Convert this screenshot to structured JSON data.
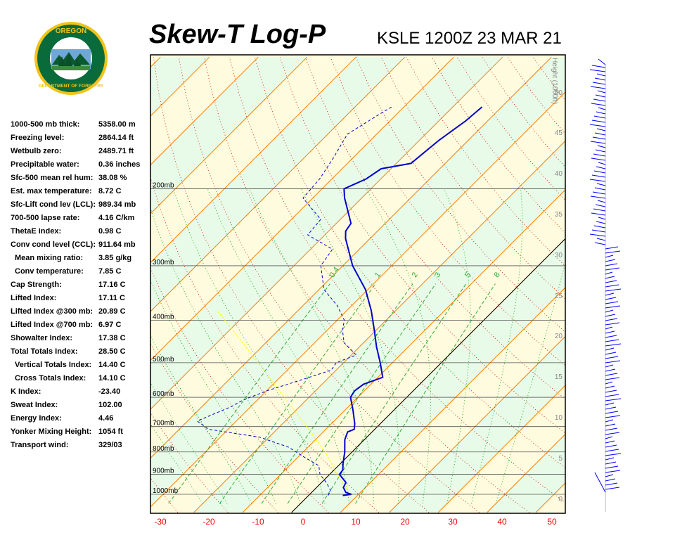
{
  "header": {
    "title": "Skew-T Log-P",
    "station_time": "KSLE 1200Z 23 MAR 21"
  },
  "logo": {
    "text_top": "OREGON",
    "text_bottom": "DEPARTMENT OF FORESTRY",
    "ring_color": "#0a6b3a",
    "gold_color": "#f2c318"
  },
  "indices": [
    {
      "label": "1000-500 mb thick:",
      "value": "5358.00 m",
      "indent": false
    },
    {
      "label": "Freezing level:",
      "value": "2864.14 ft",
      "indent": false
    },
    {
      "label": "Wetbulb zero:",
      "value": "2489.71 ft",
      "indent": false
    },
    {
      "label": "Precipitable water:",
      "value": "0.36 inches",
      "indent": false
    },
    {
      "label": "Sfc-500 mean rel hum:",
      "value": "38.08 %",
      "indent": false
    },
    {
      "label": "Est. max temperature:",
      "value": "8.72 C",
      "indent": false
    },
    {
      "label": "Sfc-Lift cond lev (LCL):",
      "value": "989.34 mb",
      "indent": false
    },
    {
      "label": "700-500 lapse rate:",
      "value": "4.16 C/km",
      "indent": false
    },
    {
      "label": "ThetaE index:",
      "value": "0.98 C",
      "indent": false
    },
    {
      "label": "Conv cond level (CCL):",
      "value": "911.64 mb",
      "indent": false
    },
    {
      "label": "Mean mixing ratio:",
      "value": "3.85 g/kg",
      "indent": true
    },
    {
      "label": "Conv temperature:",
      "value": "7.85 C",
      "indent": true
    },
    {
      "label": "Cap Strength:",
      "value": "17.16 C",
      "indent": false
    },
    {
      "label": "Lifted Index:",
      "value": "17.11 C",
      "indent": false
    },
    {
      "label": "Lifted Index @300 mb:",
      "value": "20.89 C",
      "indent": false
    },
    {
      "label": "Lifted Index @700 mb:",
      "value": "6.97 C",
      "indent": false
    },
    {
      "label": "Showalter Index:",
      "value": "17.38 C",
      "indent": false
    },
    {
      "label": "Total Totals Index:",
      "value": "28.50 C",
      "indent": false
    },
    {
      "label": "Vertical Totals Index:",
      "value": "14.40 C",
      "indent": true
    },
    {
      "label": "Cross Totals Index:",
      "value": "14.10 C",
      "indent": true
    },
    {
      "label": "K Index:",
      "value": "-23.40",
      "indent": false
    },
    {
      "label": "Sweat Index:",
      "value": "102.00",
      "indent": false
    },
    {
      "label": "Energy Index:",
      "value": "4.46",
      "indent": false
    },
    {
      "label": "Yonker Mixing Height:",
      "value": "1054 ft",
      "indent": false
    },
    {
      "label": "Transport wind:",
      "value": "329/03",
      "indent": false
    }
  ],
  "chart_data": {
    "type": "line",
    "x_axis": {
      "ticks": [
        "-30",
        "-20",
        "-10",
        "0",
        "10",
        "20",
        "30",
        "40",
        "50"
      ],
      "range": [
        -30,
        50
      ],
      "color": "#ff0000"
    },
    "pressure_levels": [
      {
        "p": 1000,
        "label": "1000mb"
      },
      {
        "p": 900,
        "label": "900mb"
      },
      {
        "p": 800,
        "label": "800mb"
      },
      {
        "p": 700,
        "label": "700mb"
      },
      {
        "p": 600,
        "label": "600mb"
      },
      {
        "p": 500,
        "label": "500mb"
      },
      {
        "p": 400,
        "label": "400mb"
      },
      {
        "p": 300,
        "label": "300mb"
      },
      {
        "p": 200,
        "label": "200mb"
      }
    ],
    "height_axis": {
      "label": "Height (1000ft)",
      "ticks": [
        "0",
        "5",
        "10",
        "15",
        "20",
        "25",
        "30",
        "35",
        "40",
        "45",
        "50"
      ]
    },
    "mixing_ratio_labels": [
      "0.4",
      "1",
      "2",
      "3",
      "5",
      "8"
    ],
    "temperature": [
      {
        "p": 1006,
        "t": 7.0
      },
      {
        "p": 1000,
        "t": 8.5
      },
      {
        "p": 990,
        "t": 7.0
      },
      {
        "p": 965,
        "t": 5.5
      },
      {
        "p": 940,
        "t": 5.0
      },
      {
        "p": 900,
        "t": 2.0
      },
      {
        "p": 880,
        "t": 1.8
      },
      {
        "p": 850,
        "t": 0.5
      },
      {
        "p": 800,
        "t": -1.5
      },
      {
        "p": 750,
        "t": -4.0
      },
      {
        "p": 720,
        "t": -5.0
      },
      {
        "p": 710,
        "t": -4.2
      },
      {
        "p": 690,
        "t": -5.2
      },
      {
        "p": 640,
        "t": -8.5
      },
      {
        "p": 600,
        "t": -11.5
      },
      {
        "p": 580,
        "t": -12.0
      },
      {
        "p": 560,
        "t": -11.5
      },
      {
        "p": 540,
        "t": -9.0
      },
      {
        "p": 500,
        "t": -12.5
      },
      {
        "p": 460,
        "t": -16.5
      },
      {
        "p": 420,
        "t": -20.5
      },
      {
        "p": 380,
        "t": -25.0
      },
      {
        "p": 340,
        "t": -30.5
      },
      {
        "p": 300,
        "t": -38.0
      },
      {
        "p": 260,
        "t": -45.0
      },
      {
        "p": 250,
        "t": -46.5
      },
      {
        "p": 240,
        "t": -47.0
      },
      {
        "p": 210,
        "t": -53.5
      },
      {
        "p": 200,
        "t": -55.5
      },
      {
        "p": 190,
        "t": -53.0
      },
      {
        "p": 180,
        "t": -52.0
      },
      {
        "p": 175,
        "t": -47.0
      },
      {
        "p": 155,
        "t": -46.0
      },
      {
        "p": 140,
        "t": -44.5
      },
      {
        "p": 130,
        "t": -44.0
      }
    ],
    "dewpoint": [
      {
        "p": 1006,
        "t": 4.0
      },
      {
        "p": 980,
        "t": 3.5
      },
      {
        "p": 940,
        "t": 1.0
      },
      {
        "p": 900,
        "t": -2.0
      },
      {
        "p": 860,
        "t": -4.0
      },
      {
        "p": 820,
        "t": -9.0
      },
      {
        "p": 780,
        "t": -14.0
      },
      {
        "p": 740,
        "t": -22.0
      },
      {
        "p": 710,
        "t": -34.0
      },
      {
        "p": 680,
        "t": -38.0
      },
      {
        "p": 630,
        "t": -34.0
      },
      {
        "p": 610,
        "t": -33.0
      },
      {
        "p": 580,
        "t": -30.0
      },
      {
        "p": 560,
        "t": -27.0
      },
      {
        "p": 520,
        "t": -21.0
      },
      {
        "p": 500,
        "t": -21.5
      },
      {
        "p": 480,
        "t": -19.0
      },
      {
        "p": 450,
        "t": -24.0
      },
      {
        "p": 420,
        "t": -27.0
      },
      {
        "p": 400,
        "t": -28.5
      },
      {
        "p": 370,
        "t": -33.0
      },
      {
        "p": 340,
        "t": -39.0
      },
      {
        "p": 300,
        "t": -44.5
      },
      {
        "p": 275,
        "t": -45.5
      },
      {
        "p": 255,
        "t": -53.5
      },
      {
        "p": 235,
        "t": -54.0
      },
      {
        "p": 210,
        "t": -62.0
      },
      {
        "p": 190,
        "t": -62.5
      },
      {
        "p": 170,
        "t": -64.0
      },
      {
        "p": 150,
        "t": -66.0
      },
      {
        "p": 135,
        "t": -63.5
      },
      {
        "p": 130,
        "t": -62.5
      }
    ],
    "parcel": [
      {
        "p": 989,
        "t": 7.5
      },
      {
        "p": 900,
        "t": 1.5
      },
      {
        "p": 800,
        "t": -5.5
      },
      {
        "p": 700,
        "t": -14.5
      },
      {
        "p": 600,
        "t": -25.0
      },
      {
        "p": 500,
        "t": -37.5
      },
      {
        "p": 420,
        "t": -49.5
      },
      {
        "p": 380,
        "t": -56.5
      }
    ],
    "wind_profile": "barbs",
    "colors": {
      "temperature": "#0000cc",
      "dewpoint": "#0000cc",
      "parcel": "#ffff00",
      "dry_adiabat": "#ff8000",
      "isotherm": "#ff8000",
      "moist_adiabat": "#00aa00",
      "mixing_ratio": "#228B22",
      "wind": "#0000ff",
      "tick_labels": "#ff0000",
      "bg_cool": "#e8fbe8",
      "bg_warm": "#fffbdf"
    }
  }
}
